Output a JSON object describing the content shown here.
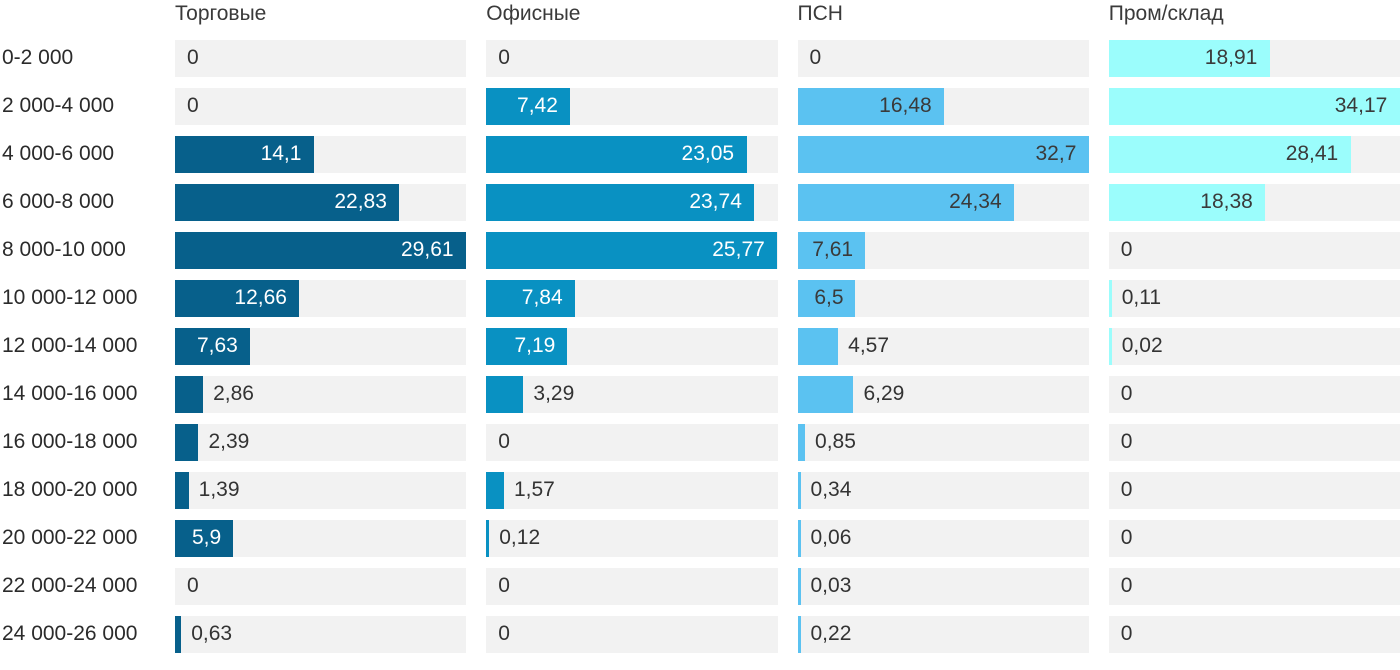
{
  "chart_data": {
    "type": "bar",
    "orientation": "horizontal",
    "scaling": "per_column_max",
    "decimal_separator": ",",
    "track_color": "#f2f2f2",
    "outside_label_color": "#333333",
    "row_label_color": "#2b2b2b",
    "header_color": "#3a3a3a",
    "categories": [
      "0-2 000",
      "2 000-4 000",
      "4 000-6 000",
      "6 000-8 000",
      "8 000-10 000",
      "10 000-12 000",
      "12 000-14 000",
      "14 000-16 000",
      "16 000-18 000",
      "18 000-20 000",
      "20 000-22 000",
      "22 000-24 000",
      "24 000-26 000"
    ],
    "column_max": [
      29.61,
      25.77,
      32.7,
      34.17
    ],
    "series": [
      {
        "name": "Торговые",
        "color": "#07608b",
        "inside_label_color": "#ffffff",
        "values": [
          0,
          0,
          14.1,
          22.83,
          29.61,
          12.66,
          7.63,
          2.86,
          2.39,
          1.39,
          5.9,
          0,
          0.63
        ],
        "labels": [
          "0",
          "0",
          "14,1",
          "22,83",
          "29,61",
          "12,66",
          "7,63",
          "2,86",
          "2,39",
          "1,39",
          "5,9",
          "0",
          "0,63"
        ]
      },
      {
        "name": "Офисные",
        "color": "#0991c2",
        "inside_label_color": "#ffffff",
        "values": [
          0,
          7.42,
          23.05,
          23.74,
          25.77,
          7.84,
          7.19,
          3.29,
          0,
          1.57,
          0.12,
          0,
          0
        ],
        "labels": [
          "0",
          "7,42",
          "23,05",
          "23,74",
          "25,77",
          "7,84",
          "7,19",
          "3,29",
          "0",
          "1,57",
          "0,12",
          "0",
          "0"
        ]
      },
      {
        "name": "ПСН",
        "color": "#5bc2f1",
        "inside_label_color": "#3a3a3a",
        "values": [
          0,
          16.48,
          32.7,
          24.34,
          7.61,
          6.5,
          4.57,
          6.29,
          0.85,
          0.34,
          0.06,
          0.03,
          0.22
        ],
        "labels": [
          "0",
          "16,48",
          "32,7",
          "24,34",
          "7,61",
          "6,5",
          "4,57",
          "6,29",
          "0,85",
          "0,34",
          "0,06",
          "0,03",
          "0,22"
        ]
      },
      {
        "name": "Пром/склад",
        "color": "#9bfdfc",
        "inside_label_color": "#3a3a3a",
        "values": [
          18.91,
          34.17,
          28.41,
          18.38,
          0,
          0.11,
          0.02,
          0,
          0,
          0,
          0,
          0,
          0
        ],
        "labels": [
          "18,91",
          "34,17",
          "28,41",
          "18,38",
          "0",
          "0,11",
          "0,02",
          "0",
          "0",
          "0",
          "0",
          "0",
          "0"
        ]
      }
    ]
  }
}
